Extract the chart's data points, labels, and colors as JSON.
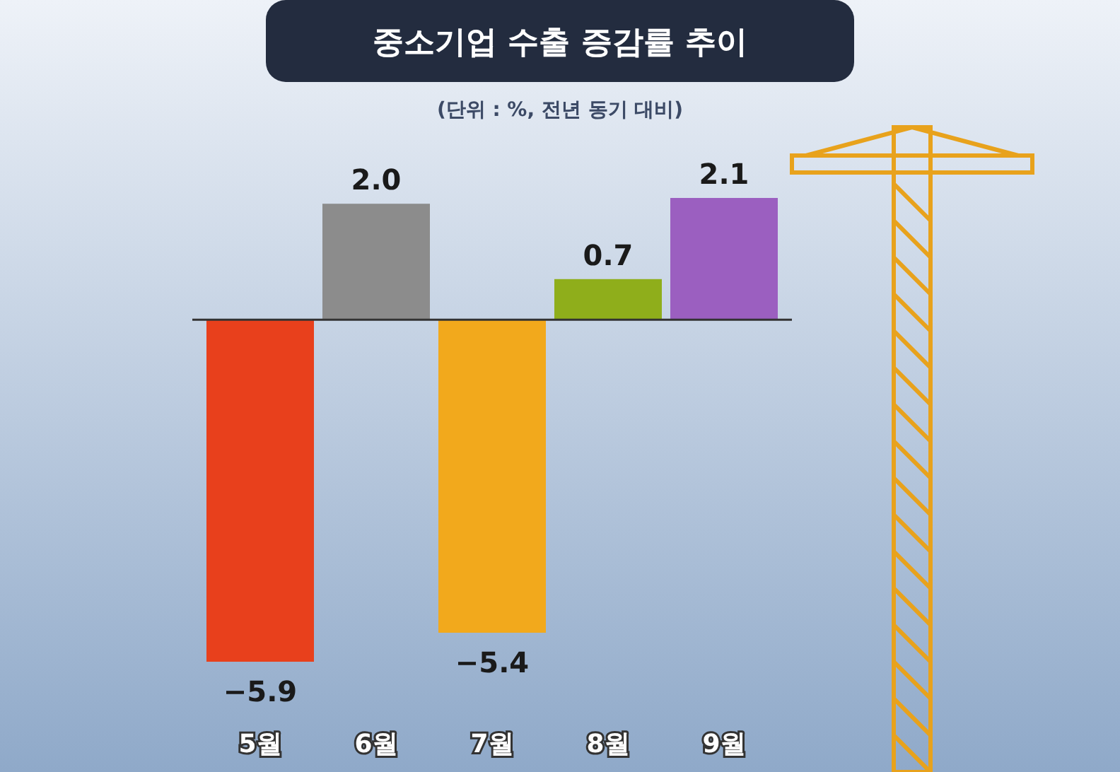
{
  "chart_data": {
    "type": "bar",
    "title": "중소기업 수출 증감률 추이",
    "subtitle": "(단위 : %, 전년 동기 대비)",
    "categories": [
      "5월",
      "6월",
      "7월",
      "8월",
      "9월"
    ],
    "values": [
      -5.9,
      2.0,
      -5.4,
      0.7,
      2.1
    ],
    "colors": [
      "#e8401c",
      "#8c8c8c",
      "#f2a91c",
      "#8fae1b",
      "#9b5fc0"
    ],
    "value_labels": [
      "−5.9",
      "2.0",
      "−5.4",
      "0.7",
      "2.1"
    ]
  }
}
